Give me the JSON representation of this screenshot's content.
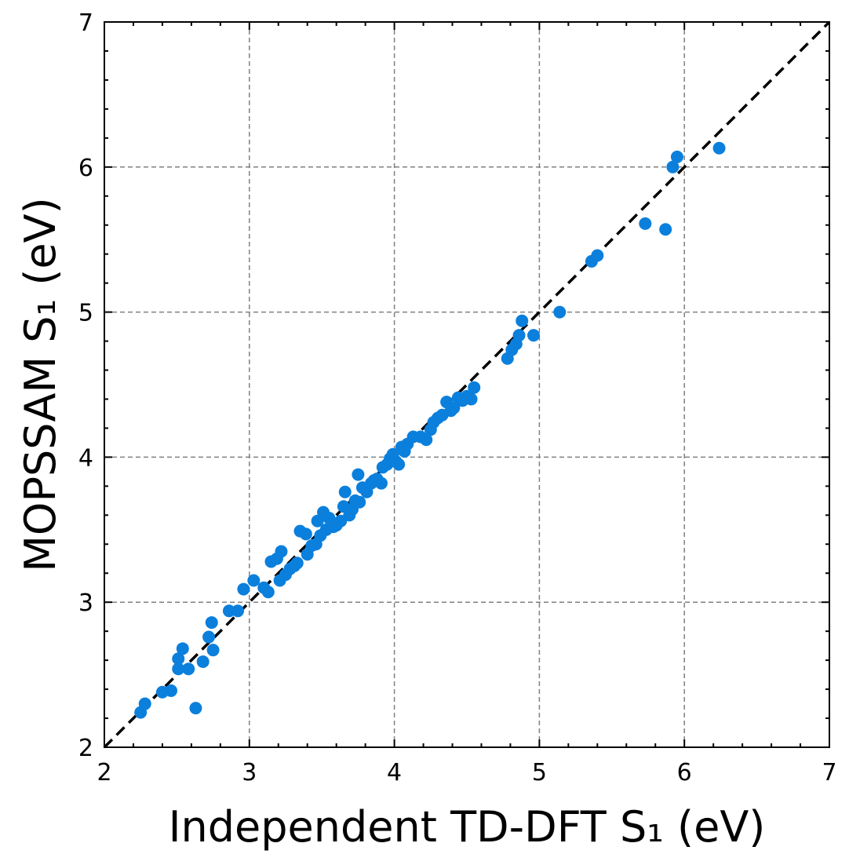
{
  "chart_data": {
    "type": "scatter",
    "xlabel": "Independent TD-DFT S₁ (eV)",
    "ylabel": "MOPSSAM S₁ (eV)",
    "xlim": [
      2,
      7
    ],
    "ylim": [
      2,
      7
    ],
    "x_ticks": [
      "2",
      "3",
      "4",
      "5",
      "6",
      "7"
    ],
    "y_ticks": [
      "2",
      "3",
      "4",
      "5",
      "6",
      "7"
    ],
    "grid": true,
    "reference_line": "y = x (dashed)",
    "marker_color": "#0b7fdc",
    "grid_color": "#808080",
    "points": [
      [
        2.25,
        2.24
      ],
      [
        2.28,
        2.3
      ],
      [
        2.4,
        2.38
      ],
      [
        2.46,
        2.39
      ],
      [
        2.51,
        2.54
      ],
      [
        2.51,
        2.61
      ],
      [
        2.54,
        2.68
      ],
      [
        2.58,
        2.54
      ],
      [
        2.63,
        2.27
      ],
      [
        2.68,
        2.59
      ],
      [
        2.72,
        2.76
      ],
      [
        2.74,
        2.86
      ],
      [
        2.75,
        2.67
      ],
      [
        2.86,
        2.94
      ],
      [
        2.92,
        2.94
      ],
      [
        2.96,
        3.09
      ],
      [
        3.03,
        3.15
      ],
      [
        3.1,
        3.1
      ],
      [
        3.13,
        3.07
      ],
      [
        3.15,
        3.28
      ],
      [
        3.19,
        3.3
      ],
      [
        3.21,
        3.15
      ],
      [
        3.22,
        3.35
      ],
      [
        3.25,
        3.19
      ],
      [
        3.28,
        3.23
      ],
      [
        3.31,
        3.25
      ],
      [
        3.33,
        3.27
      ],
      [
        3.35,
        3.49
      ],
      [
        3.39,
        3.47
      ],
      [
        3.4,
        3.33
      ],
      [
        3.43,
        3.39
      ],
      [
        3.46,
        3.4
      ],
      [
        3.47,
        3.56
      ],
      [
        3.49,
        3.46
      ],
      [
        3.51,
        3.62
      ],
      [
        3.53,
        3.5
      ],
      [
        3.55,
        3.58
      ],
      [
        3.58,
        3.52
      ],
      [
        3.6,
        3.53
      ],
      [
        3.63,
        3.56
      ],
      [
        3.65,
        3.66
      ],
      [
        3.66,
        3.76
      ],
      [
        3.69,
        3.6
      ],
      [
        3.71,
        3.64
      ],
      [
        3.73,
        3.7
      ],
      [
        3.75,
        3.88
      ],
      [
        3.76,
        3.69
      ],
      [
        3.78,
        3.79
      ],
      [
        3.81,
        3.76
      ],
      [
        3.84,
        3.82
      ],
      [
        3.86,
        3.84
      ],
      [
        3.88,
        3.85
      ],
      [
        3.91,
        3.82
      ],
      [
        3.92,
        3.93
      ],
      [
        3.95,
        3.95
      ],
      [
        3.97,
        3.99
      ],
      [
        3.99,
        4.02
      ],
      [
        4.01,
        3.97
      ],
      [
        4.03,
        3.95
      ],
      [
        4.05,
        4.07
      ],
      [
        4.07,
        4.04
      ],
      [
        4.09,
        4.09
      ],
      [
        4.13,
        4.14
      ],
      [
        4.18,
        4.14
      ],
      [
        4.22,
        4.12
      ],
      [
        4.25,
        4.19
      ],
      [
        4.27,
        4.24
      ],
      [
        4.3,
        4.27
      ],
      [
        4.33,
        4.29
      ],
      [
        4.36,
        4.38
      ],
      [
        4.39,
        4.32
      ],
      [
        4.41,
        4.34
      ],
      [
        4.44,
        4.41
      ],
      [
        4.47,
        4.39
      ],
      [
        4.5,
        4.42
      ],
      [
        4.53,
        4.4
      ],
      [
        4.55,
        4.48
      ],
      [
        4.78,
        4.68
      ],
      [
        4.81,
        4.74
      ],
      [
        4.84,
        4.78
      ],
      [
        4.86,
        4.84
      ],
      [
        4.88,
        4.94
      ],
      [
        4.96,
        4.84
      ],
      [
        5.14,
        5.0
      ],
      [
        5.36,
        5.35
      ],
      [
        5.4,
        5.39
      ],
      [
        5.73,
        5.61
      ],
      [
        5.87,
        5.57
      ],
      [
        5.92,
        6.0
      ],
      [
        5.95,
        6.07
      ],
      [
        6.24,
        6.13
      ]
    ]
  }
}
